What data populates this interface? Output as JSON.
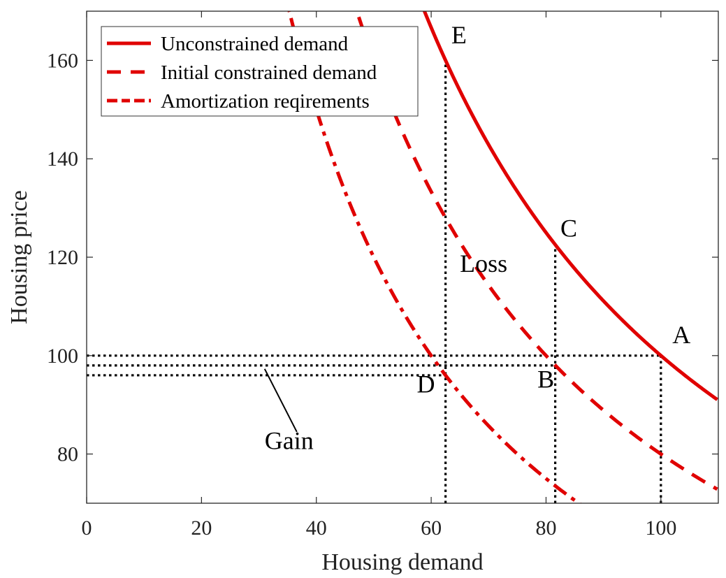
{
  "chart_data": {
    "type": "line",
    "title": "",
    "xlabel": "Housing demand",
    "ylabel": "Housing price",
    "xlim": [
      0,
      110
    ],
    "ylim": [
      70,
      170
    ],
    "xticks": [
      0,
      20,
      40,
      60,
      80,
      100
    ],
    "yticks": [
      80,
      100,
      120,
      140,
      160
    ],
    "xtick_labels": [
      "0",
      "20",
      "40",
      "60",
      "80",
      "100"
    ],
    "ytick_labels": [
      "80",
      "100",
      "120",
      "140",
      "160"
    ],
    "grid": false,
    "legend_position": "top-left",
    "series": [
      {
        "name": "Unconstrained demand",
        "style": "solid",
        "color": "#e00000",
        "formula": "P = 10000 / D",
        "k": 10000,
        "points": [
          [
            58.8,
            170
          ],
          [
            62.5,
            160
          ],
          [
            70,
            142.9
          ],
          [
            81.5,
            122.7
          ],
          [
            90,
            111.1
          ],
          [
            100,
            100
          ],
          [
            110,
            90.9
          ]
        ]
      },
      {
        "name": "Initial constrained demand",
        "style": "dashed",
        "color": "#e00000",
        "formula": "P = 8000 / D",
        "k": 8000,
        "points": [
          [
            47.1,
            170
          ],
          [
            60,
            133.3
          ],
          [
            70,
            114.3
          ],
          [
            81.5,
            98.2
          ],
          [
            90,
            88.9
          ],
          [
            100,
            80
          ],
          [
            110,
            72.7
          ]
        ]
      },
      {
        "name": "Amortization reqirements",
        "style": "dashdot",
        "color": "#e00000",
        "formula": "P = 6000 / D",
        "k": 6000,
        "points": [
          [
            35.3,
            170
          ],
          [
            45,
            133.3
          ],
          [
            55,
            109.1
          ],
          [
            62.5,
            96
          ],
          [
            70,
            85.7
          ],
          [
            80,
            75
          ],
          [
            85.7,
            70
          ]
        ]
      }
    ],
    "reference_lines": [
      {
        "name": "price-100-line",
        "type": "horizontal",
        "y": 100,
        "x_from": 0,
        "x_to": 100
      },
      {
        "name": "price-98-line",
        "type": "horizontal",
        "y": 98,
        "x_from": 0,
        "x_to": 81.6
      },
      {
        "name": "price-96-line",
        "type": "horizontal",
        "y": 96,
        "x_from": 0,
        "x_to": 62.5
      },
      {
        "name": "demand-62-line",
        "type": "vertical",
        "x": 62.5,
        "y_from": 70,
        "y_to": 160
      },
      {
        "name": "demand-81-line",
        "type": "vertical",
        "x": 81.6,
        "y_from": 70,
        "y_to": 122.6
      },
      {
        "name": "demand-100-line",
        "type": "vertical",
        "x": 100,
        "y_from": 70,
        "y_to": 100
      }
    ],
    "annotations": [
      {
        "name": "point-A",
        "text": "A",
        "x": 102,
        "y": 102.5
      },
      {
        "name": "point-B",
        "text": "B",
        "x": 78.5,
        "y": 93.5
      },
      {
        "name": "point-C",
        "text": "C",
        "x": 82.5,
        "y": 124.2
      },
      {
        "name": "point-D",
        "text": "D",
        "x": 57.5,
        "y": 92.5
      },
      {
        "name": "point-E",
        "text": "E",
        "x": 63.5,
        "y": 163.5
      },
      {
        "name": "loss-label",
        "text": "Loss",
        "x": 65,
        "y": 117
      },
      {
        "name": "gain-label",
        "text": "Gain",
        "x": 31,
        "y": 81
      }
    ],
    "gain_pointer": {
      "from": [
        31,
        97.3
      ],
      "to": [
        36.6,
        84.5
      ]
    }
  }
}
